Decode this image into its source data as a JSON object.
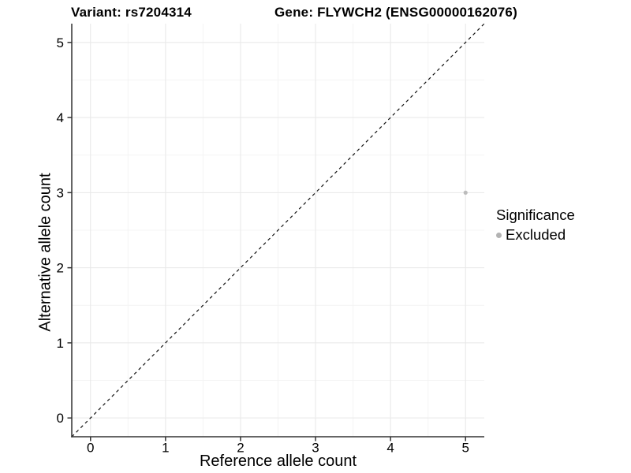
{
  "chart_data": {
    "type": "scatter",
    "title_left": "Variant: rs7204314",
    "title_right": "Gene: FLYWCH2 (ENSG00000162076)",
    "xlabel": "Reference allele count",
    "ylabel": "Alternative allele count",
    "xlim": [
      -0.25,
      5.25
    ],
    "ylim": [
      -0.25,
      5.25
    ],
    "x_ticks": [
      0,
      1,
      2,
      3,
      4,
      5
    ],
    "y_ticks": [
      0,
      1,
      2,
      3,
      4,
      5
    ],
    "grid": "major+minor",
    "series": [
      {
        "name": "Excluded",
        "color": "#bcbcbc",
        "points": [
          {
            "x": 5,
            "y": 3
          }
        ]
      }
    ],
    "reference_line": {
      "style": "dashed",
      "equation": "y = x",
      "color": "#111111"
    },
    "legend": {
      "title": "Significance",
      "position": "right",
      "items": [
        {
          "label": "Excluded",
          "color": "#b3b3b3"
        }
      ]
    },
    "colors": {
      "background": "#ffffff",
      "grid_major": "#e8e8e8",
      "grid_minor": "#f4f4f4",
      "axis": "#333333",
      "tick_text": "#000000"
    }
  }
}
